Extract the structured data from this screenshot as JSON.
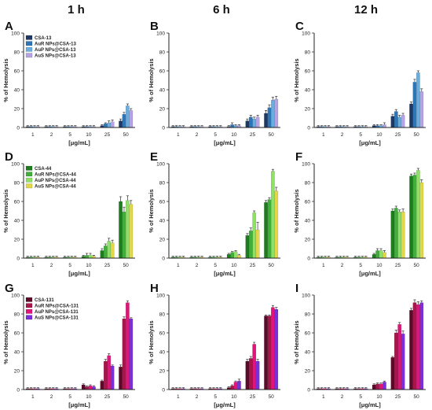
{
  "column_titles": [
    "1 h",
    "6 h",
    "12 h"
  ],
  "chart_data": [
    {
      "panel": "A",
      "type": "bar",
      "categories": [
        "1",
        "2",
        "5",
        "10",
        "25",
        "50"
      ],
      "xlabel": "[μg/mL]",
      "ylabel": "% of Hemolysis",
      "ylim": [
        0,
        100
      ],
      "yticks": [
        0,
        20,
        40,
        60,
        80,
        100
      ],
      "legend": "top-left",
      "series": [
        {
          "name": "CSA-13",
          "color": "#1f3864",
          "values": [
            1,
            1,
            1,
            1,
            2,
            7
          ],
          "errors": [
            1,
            1,
            1,
            1,
            1,
            2
          ]
        },
        {
          "name": "AuR NPs@CSA-13",
          "color": "#2e75b6",
          "values": [
            1,
            1,
            1,
            1,
            4,
            14
          ],
          "errors": [
            1,
            1,
            1,
            1,
            1,
            2
          ]
        },
        {
          "name": "AuP NPs@CSA-13",
          "color": "#6aaee0",
          "values": [
            1,
            1,
            1,
            1,
            5,
            23
          ],
          "errors": [
            1,
            1,
            1,
            1,
            2,
            2
          ]
        },
        {
          "name": "AuS NPs@CSA-13",
          "color": "#b5a3e3",
          "values": [
            1,
            1,
            1,
            1,
            6,
            18
          ],
          "errors": [
            1,
            1,
            1,
            1,
            2,
            2
          ]
        }
      ]
    },
    {
      "panel": "B",
      "type": "bar",
      "categories": [
        "1",
        "2",
        "5",
        "10",
        "25",
        "50"
      ],
      "xlabel": "[μg/mL]",
      "ylabel": "% of Hemolysis",
      "ylim": [
        0,
        100
      ],
      "yticks": [
        0,
        20,
        40,
        60,
        80,
        100
      ],
      "legend": "none",
      "series": [
        {
          "name": "CSA-13",
          "color": "#1f3864",
          "values": [
            1,
            1,
            1,
            1,
            7,
            15
          ],
          "errors": [
            1,
            1,
            1,
            1,
            2,
            3
          ]
        },
        {
          "name": "AuR NPs@CSA-13",
          "color": "#2e75b6",
          "values": [
            1,
            1,
            1,
            3,
            11,
            21
          ],
          "errors": [
            1,
            1,
            1,
            2,
            2,
            3
          ]
        },
        {
          "name": "AuP NPs@CSA-13",
          "color": "#6aaee0",
          "values": [
            1,
            1,
            1,
            2,
            9,
            29
          ],
          "errors": [
            1,
            1,
            1,
            1,
            2,
            3
          ]
        },
        {
          "name": "AuS NPs@CSA-13",
          "color": "#b5a3e3",
          "values": [
            1,
            1,
            1,
            2,
            11,
            30
          ],
          "errors": [
            1,
            1,
            1,
            1,
            2,
            3
          ]
        }
      ]
    },
    {
      "panel": "C",
      "type": "bar",
      "categories": [
        "1",
        "2",
        "5",
        "10",
        "25",
        "50"
      ],
      "xlabel": "[μg/mL]",
      "ylabel": "% of Hemolysis",
      "ylim": [
        0,
        100
      ],
      "yticks": [
        0,
        20,
        40,
        60,
        80,
        100
      ],
      "legend": "none",
      "series": [
        {
          "name": "CSA-13",
          "color": "#1f3864",
          "values": [
            1,
            1,
            1,
            2,
            12,
            25
          ],
          "errors": [
            1,
            1,
            1,
            1,
            2,
            2
          ]
        },
        {
          "name": "AuR NPs@CSA-13",
          "color": "#2e75b6",
          "values": [
            1,
            1,
            1,
            2,
            17,
            48
          ],
          "errors": [
            1,
            1,
            1,
            1,
            2,
            3
          ]
        },
        {
          "name": "AuP NPs@CSA-13",
          "color": "#6aaee0",
          "values": [
            1,
            1,
            1,
            2,
            11,
            58
          ],
          "errors": [
            1,
            1,
            1,
            1,
            2,
            2
          ]
        },
        {
          "name": "AuS NPs@CSA-13",
          "color": "#b5a3e3",
          "values": [
            1,
            1,
            1,
            3,
            13,
            38
          ],
          "errors": [
            1,
            1,
            1,
            2,
            2,
            3
          ]
        }
      ]
    },
    {
      "panel": "D",
      "type": "bar",
      "categories": [
        "1",
        "2",
        "5",
        "10",
        "25",
        "50"
      ],
      "xlabel": "[μg/mL]",
      "ylabel": "% of Hemolysis",
      "ylim": [
        0,
        100
      ],
      "yticks": [
        0,
        20,
        40,
        60,
        80,
        100
      ],
      "legend": "top-left",
      "series": [
        {
          "name": "CSA-44",
          "color": "#1e7b1e",
          "values": [
            1,
            1,
            1,
            2,
            8,
            60
          ],
          "errors": [
            1,
            1,
            1,
            1,
            2,
            5
          ]
        },
        {
          "name": "AuR NPs@CSA-44",
          "color": "#3fae3a",
          "values": [
            1,
            1,
            1,
            3,
            13,
            49
          ],
          "errors": [
            1,
            1,
            1,
            2,
            2,
            5
          ]
        },
        {
          "name": "AuP NPs@CSA-44",
          "color": "#8fe066",
          "values": [
            1,
            1,
            1,
            3,
            18,
            61
          ],
          "errors": [
            1,
            1,
            1,
            2,
            3,
            5
          ]
        },
        {
          "name": "AuS NPs@CSA-44",
          "color": "#e3d64a",
          "values": [
            1,
            1,
            1,
            2,
            16,
            57
          ],
          "errors": [
            1,
            1,
            1,
            1,
            3,
            4
          ]
        }
      ]
    },
    {
      "panel": "E",
      "type": "bar",
      "categories": [
        "1",
        "2",
        "5",
        "10",
        "25",
        "50"
      ],
      "xlabel": "[μg/mL]",
      "ylabel": "% of Hemolysis",
      "ylim": [
        0,
        100
      ],
      "yticks": [
        0,
        20,
        40,
        60,
        80,
        100
      ],
      "legend": "none",
      "series": [
        {
          "name": "CSA-44",
          "color": "#1e7b1e",
          "values": [
            1,
            1,
            1,
            4,
            24,
            59
          ],
          "errors": [
            1,
            1,
            1,
            1,
            2,
            2
          ]
        },
        {
          "name": "AuR NPs@CSA-44",
          "color": "#3fae3a",
          "values": [
            1,
            1,
            1,
            6,
            29,
            62
          ],
          "errors": [
            1,
            1,
            1,
            1,
            3,
            2
          ]
        },
        {
          "name": "AuP NPs@CSA-44",
          "color": "#8fe066",
          "values": [
            1,
            1,
            1,
            7,
            48,
            92
          ],
          "errors": [
            1,
            1,
            1,
            1,
            2,
            2
          ]
        },
        {
          "name": "AuS NPs@CSA-44",
          "color": "#e3d64a",
          "values": [
            1,
            1,
            1,
            3,
            30,
            71
          ],
          "errors": [
            1,
            1,
            1,
            1,
            8,
            4
          ]
        }
      ]
    },
    {
      "panel": "F",
      "type": "bar",
      "categories": [
        "1",
        "2",
        "5",
        "10",
        "25",
        "50"
      ],
      "xlabel": "[μg/mL]",
      "ylabel": "% of Hemolysis",
      "ylim": [
        0,
        100
      ],
      "yticks": [
        0,
        20,
        40,
        60,
        80,
        100
      ],
      "legend": "none",
      "series": [
        {
          "name": "CSA-44",
          "color": "#1e7b1e",
          "values": [
            1,
            1,
            1,
            4,
            50,
            87
          ],
          "errors": [
            1,
            1,
            1,
            1,
            2,
            2
          ]
        },
        {
          "name": "AuR NPs@CSA-44",
          "color": "#3fae3a",
          "values": [
            1,
            1,
            1,
            8,
            53,
            88
          ],
          "errors": [
            1,
            1,
            1,
            2,
            2,
            2
          ]
        },
        {
          "name": "AuP NPs@CSA-44",
          "color": "#8fe066",
          "values": [
            1,
            1,
            1,
            8,
            49,
            93
          ],
          "errors": [
            1,
            1,
            1,
            2,
            2,
            2
          ]
        },
        {
          "name": "AuS NPs@CSA-44",
          "color": "#e3d64a",
          "values": [
            1,
            1,
            1,
            6,
            49,
            80
          ],
          "errors": [
            1,
            1,
            1,
            2,
            3,
            3
          ]
        }
      ]
    },
    {
      "panel": "G",
      "type": "bar",
      "categories": [
        "1",
        "2",
        "5",
        "10",
        "25",
        "50"
      ],
      "xlabel": "[μg/mL]",
      "ylabel": "% of Hemolysis",
      "ylim": [
        0,
        100
      ],
      "yticks": [
        0,
        20,
        40,
        60,
        80,
        100
      ],
      "legend": "top-left",
      "series": [
        {
          "name": "CSA-131",
          "color": "#5c0a2a",
          "values": [
            1,
            1,
            1,
            5,
            9,
            24
          ],
          "errors": [
            1,
            1,
            1,
            1,
            1,
            2
          ]
        },
        {
          "name": "AuR NPs@CSA-131",
          "color": "#a5174a",
          "values": [
            1,
            1,
            1,
            3,
            30,
            75
          ],
          "errors": [
            1,
            1,
            1,
            1,
            2,
            2
          ]
        },
        {
          "name": "AuP NPs@CSA-131",
          "color": "#e0157a",
          "values": [
            1,
            1,
            1,
            4,
            36,
            92
          ],
          "errors": [
            1,
            1,
            1,
            1,
            2,
            2
          ]
        },
        {
          "name": "AuS NPs@CSA-131",
          "color": "#7b2fd8",
          "values": [
            1,
            1,
            1,
            3,
            25,
            75
          ],
          "errors": [
            1,
            1,
            1,
            1,
            1,
            1
          ]
        }
      ]
    },
    {
      "panel": "H",
      "type": "bar",
      "categories": [
        "1",
        "2",
        "5",
        "10",
        "25",
        "50"
      ],
      "xlabel": "[μg/mL]",
      "ylabel": "% of Hemolysis",
      "ylim": [
        0,
        100
      ],
      "yticks": [
        0,
        20,
        40,
        60,
        80,
        100
      ],
      "legend": "none",
      "series": [
        {
          "name": "CSA-131",
          "color": "#5c0a2a",
          "values": [
            1,
            1,
            1,
            2,
            30,
            78
          ],
          "errors": [
            1,
            1,
            1,
            1,
            2,
            1
          ]
        },
        {
          "name": "AuR NPs@CSA-131",
          "color": "#a5174a",
          "values": [
            1,
            1,
            1,
            4,
            33,
            78
          ],
          "errors": [
            1,
            1,
            1,
            1,
            2,
            1
          ]
        },
        {
          "name": "AuP NPs@CSA-131",
          "color": "#e0157a",
          "values": [
            1,
            1,
            1,
            8,
            48,
            87
          ],
          "errors": [
            1,
            1,
            1,
            1,
            2,
            2
          ]
        },
        {
          "name": "AuS NPs@CSA-131",
          "color": "#7b2fd8",
          "values": [
            1,
            1,
            1,
            9,
            30,
            85
          ],
          "errors": [
            1,
            1,
            1,
            2,
            2,
            2
          ]
        }
      ]
    },
    {
      "panel": "I",
      "type": "bar",
      "categories": [
        "1",
        "2",
        "5",
        "10",
        "25",
        "50"
      ],
      "xlabel": "[μg/mL]",
      "ylabel": "% of Hemolysis",
      "ylim": [
        0,
        100
      ],
      "yticks": [
        0,
        20,
        40,
        60,
        80,
        100
      ],
      "legend": "none",
      "series": [
        {
          "name": "CSA-131",
          "color": "#5c0a2a",
          "values": [
            1,
            1,
            1,
            5,
            34,
            84
          ],
          "errors": [
            1,
            1,
            1,
            1,
            1,
            2
          ]
        },
        {
          "name": "AuR NPs@CSA-131",
          "color": "#a5174a",
          "values": [
            1,
            1,
            1,
            6,
            60,
            92
          ],
          "errors": [
            1,
            1,
            1,
            1,
            3,
            3
          ]
        },
        {
          "name": "AuP NPs@CSA-131",
          "color": "#e0157a",
          "values": [
            1,
            1,
            1,
            6,
            69,
            90
          ],
          "errors": [
            1,
            1,
            1,
            1,
            2,
            3
          ]
        },
        {
          "name": "AuS NPs@CSA-131",
          "color": "#7b2fd8",
          "values": [
            1,
            1,
            1,
            8,
            59,
            92
          ],
          "errors": [
            1,
            1,
            1,
            1,
            3,
            2
          ]
        }
      ]
    }
  ]
}
